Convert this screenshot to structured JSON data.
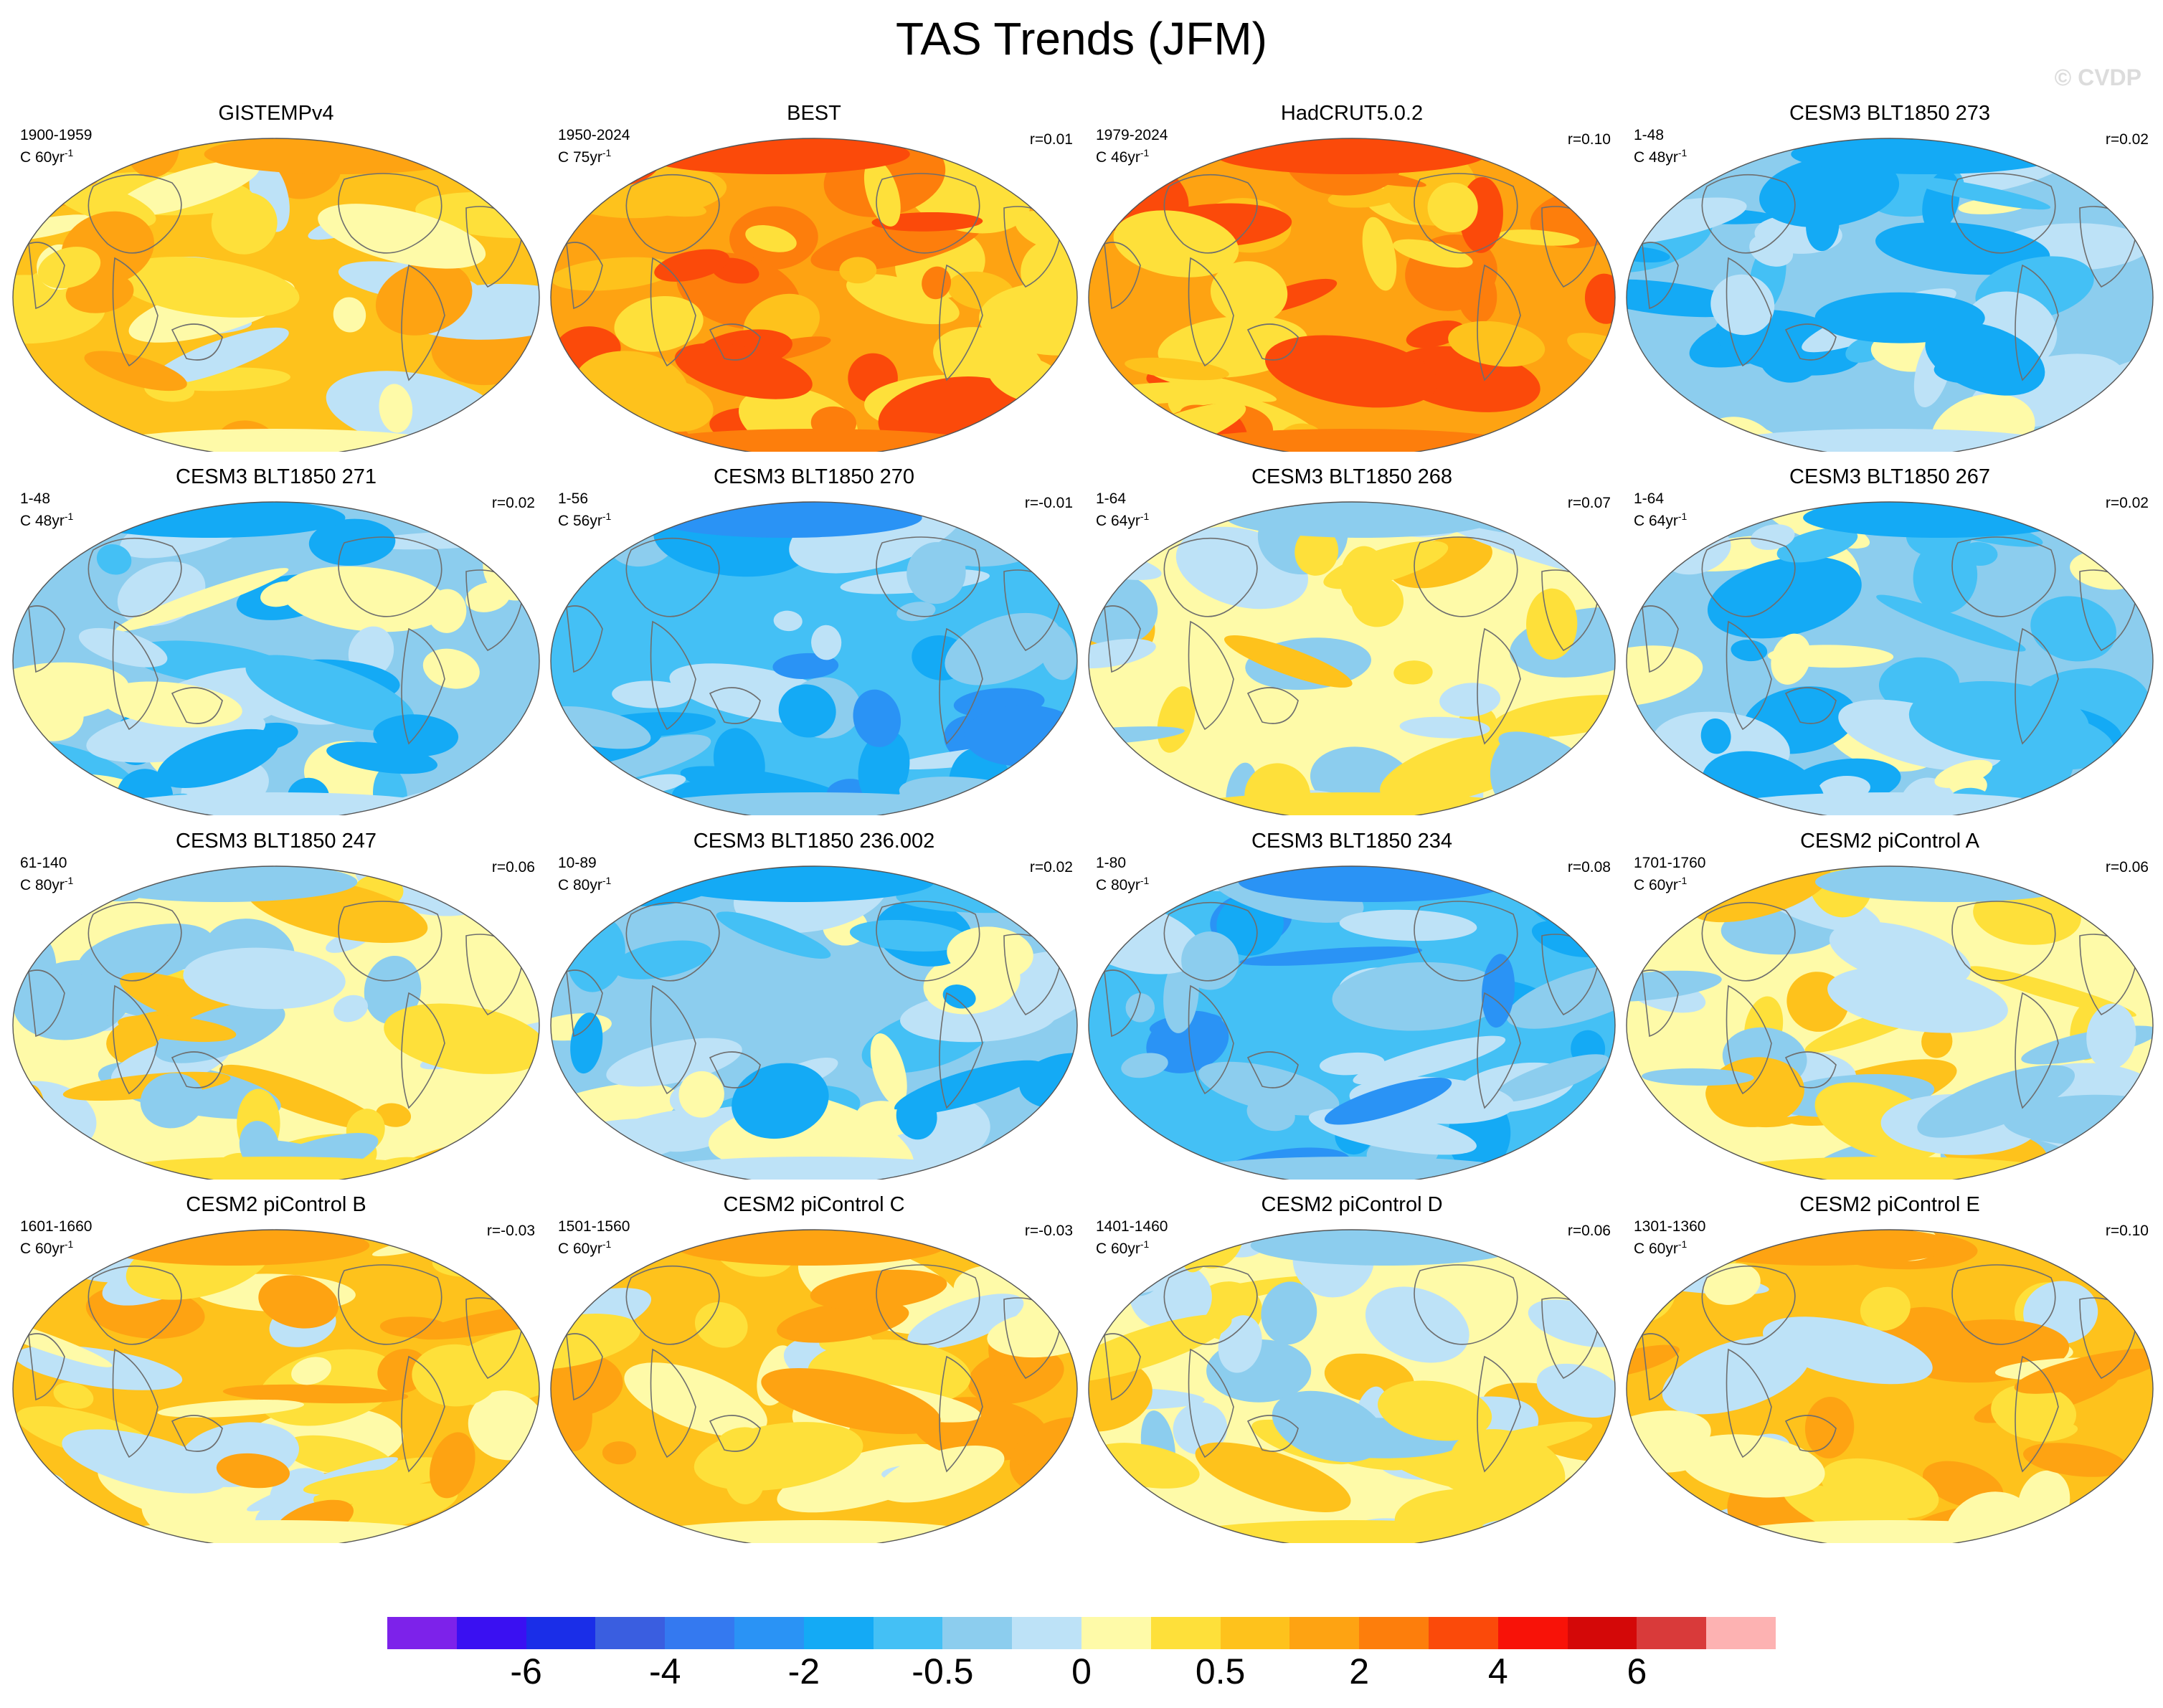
{
  "figure": {
    "title": "TAS Trends (JFM)",
    "watermark": "© CVDP"
  },
  "panels": [
    {
      "title": "GISTEMPv4",
      "period": "1900-1959",
      "units_base": "C 60yr",
      "units_exp": "-1",
      "corr": "",
      "tone": "warm-mixed"
    },
    {
      "title": "BEST",
      "period": "1950-2024",
      "units_base": "C 75yr",
      "units_exp": "-1",
      "corr": "r=0.01",
      "tone": "warm-strong"
    },
    {
      "title": "HadCRUT5.0.2",
      "period": "1979-2024",
      "units_base": "C 46yr",
      "units_exp": "-1",
      "corr": "r=0.10",
      "tone": "warm-strong"
    },
    {
      "title": "CESM3 BLT1850 273",
      "period": "1-48",
      "units_base": "C 48yr",
      "units_exp": "-1",
      "corr": "r=0.02",
      "tone": "cool"
    },
    {
      "title": "CESM3 BLT1850 271",
      "period": "1-48",
      "units_base": "C 48yr",
      "units_exp": "-1",
      "corr": "r=0.02",
      "tone": "cool"
    },
    {
      "title": "CESM3 BLT1850 270",
      "period": "1-56",
      "units_base": "C 56yr",
      "units_exp": "-1",
      "corr": "r=-0.01",
      "tone": "cool-strong"
    },
    {
      "title": "CESM3 BLT1850 268",
      "period": "1-64",
      "units_base": "C 64yr",
      "units_exp": "-1",
      "corr": "r=0.07",
      "tone": "mixed"
    },
    {
      "title": "CESM3 BLT1850 267",
      "period": "1-64",
      "units_base": "C 64yr",
      "units_exp": "-1",
      "corr": "r=0.02",
      "tone": "cool"
    },
    {
      "title": "CESM3 BLT1850 247",
      "period": "61-140",
      "units_base": "C 80yr",
      "units_exp": "-1",
      "corr": "r=0.06",
      "tone": "mixed"
    },
    {
      "title": "CESM3 BLT1850 236.002",
      "period": "10-89",
      "units_base": "C 80yr",
      "units_exp": "-1",
      "corr": "r=0.02",
      "tone": "cool"
    },
    {
      "title": "CESM3 BLT1850 234",
      "period": "1-80",
      "units_base": "C 80yr",
      "units_exp": "-1",
      "corr": "r=0.08",
      "tone": "cool-strong"
    },
    {
      "title": "CESM2 piControl A",
      "period": "1701-1760",
      "units_base": "C 60yr",
      "units_exp": "-1",
      "corr": "r=0.06",
      "tone": "mixed"
    },
    {
      "title": "CESM2 piControl B",
      "period": "1601-1660",
      "units_base": "C 60yr",
      "units_exp": "-1",
      "corr": "r=-0.03",
      "tone": "warm-mixed"
    },
    {
      "title": "CESM2 piControl C",
      "period": "1501-1560",
      "units_base": "C 60yr",
      "units_exp": "-1",
      "corr": "r=-0.03",
      "tone": "warm-mixed"
    },
    {
      "title": "CESM2 piControl D",
      "period": "1401-1460",
      "units_base": "C 60yr",
      "units_exp": "-1",
      "corr": "r=0.06",
      "tone": "mixed"
    },
    {
      "title": "CESM2 piControl E",
      "period": "1301-1360",
      "units_base": "C 60yr",
      "units_exp": "-1",
      "corr": "r=0.10",
      "tone": "warm-mixed"
    }
  ],
  "colorbar": {
    "colors": [
      "#7d22ea",
      "#3a10f2",
      "#1a2ee8",
      "#3a5ee0",
      "#3479f0",
      "#2a93f5",
      "#14aaf5",
      "#44c0f5",
      "#8ccdee",
      "#bde2f7",
      "#fefaa8",
      "#fee03a",
      "#fec21c",
      "#fea312",
      "#fd7e0c",
      "#fb4a0a",
      "#f81208",
      "#d40808",
      "#d93a3a",
      "#fdb2b2"
    ],
    "labels": [
      {
        "text": "-6",
        "boundary": 2
      },
      {
        "text": "-4",
        "boundary": 4
      },
      {
        "text": "-2",
        "boundary": 6
      },
      {
        "text": "-0.5",
        "boundary": 8
      },
      {
        "text": "0",
        "boundary": 10
      },
      {
        "text": "0.5",
        "boundary": 12
      },
      {
        "text": "2",
        "boundary": 14
      },
      {
        "text": "4",
        "boundary": 16
      },
      {
        "text": "6",
        "boundary": 18
      }
    ]
  },
  "tone_palettes": {
    "warm-strong": [
      "#fea312",
      "#fec21c",
      "#fd7e0c",
      "#fb4a0a",
      "#fee03a"
    ],
    "warm-mixed": [
      "#fec21c",
      "#fee03a",
      "#fefaa8",
      "#fea312",
      "#bde2f7"
    ],
    "mixed": [
      "#fefaa8",
      "#bde2f7",
      "#fee03a",
      "#8ccdee",
      "#fec21c"
    ],
    "cool": [
      "#8ccdee",
      "#44c0f5",
      "#bde2f7",
      "#14aaf5",
      "#fefaa8"
    ],
    "cool-strong": [
      "#44c0f5",
      "#14aaf5",
      "#8ccdee",
      "#2a93f5",
      "#bde2f7"
    ]
  }
}
